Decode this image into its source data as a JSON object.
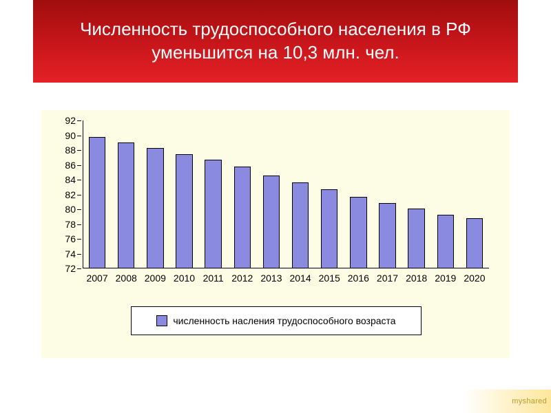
{
  "title": "Численность трудоспособного населения\nв РФ уменьшится на 10,3 млн. чел.",
  "chart": {
    "type": "bar",
    "background_color": "#fdfde6",
    "bar_color": "#8a8ae0",
    "bar_border_color": "#000000",
    "axis_color": "#000000",
    "ylim_min": 72,
    "ylim_max": 92,
    "ytick_step": 2,
    "yticks": [
      72,
      74,
      76,
      78,
      80,
      82,
      84,
      86,
      88,
      90,
      92
    ],
    "categories": [
      "2007",
      "2008",
      "2009",
      "2010",
      "2011",
      "2012",
      "2013",
      "2014",
      "2015",
      "2016",
      "2017",
      "2018",
      "2019",
      "2020"
    ],
    "values": [
      89.8,
      89.0,
      88.3,
      87.4,
      86.7,
      85.8,
      84.6,
      83.6,
      82.7,
      81.7,
      80.8,
      80.1,
      79.3,
      78.8
    ],
    "bar_width_ratio": 0.58,
    "label_fontsize": 14
  },
  "legend": {
    "swatch_color": "#8a8ae0",
    "label": "численность насления трудоспособного возраста"
  },
  "watermark": "myshared"
}
